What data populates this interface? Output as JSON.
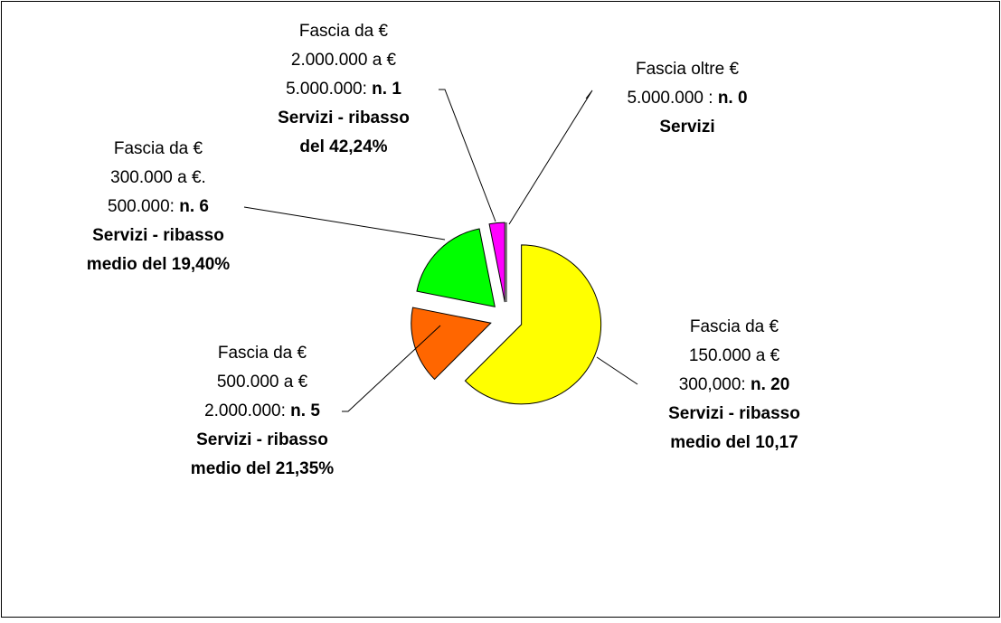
{
  "chart_data": {
    "type": "pie",
    "categories": [
      {
        "plain": [
          "Fascia da €",
          "150.000 a €",
          "300,000:"
        ],
        "bold": [
          "Servizi - ribasso",
          "medio del 10,17"
        ]
      },
      {
        "plain": [
          "Fascia da €",
          "500.000 a €",
          "2.000.000:"
        ],
        "bold": [
          "Servizi - ribasso",
          "medio del 21,35%"
        ]
      },
      {
        "plain": [
          "Fascia da €",
          "300.000 a €.",
          "500.000:"
        ],
        "bold": [
          "Servizi - ribasso",
          "medio del 19,40%"
        ]
      },
      {
        "plain": [
          "Fascia da €",
          "2.000.000 a €",
          "5.000.000:"
        ],
        "bold": [
          "Servizi - ribasso",
          "del 42,24%"
        ]
      },
      {
        "plain": [
          "Fascia oltre €",
          "5.000.000 :"
        ],
        "bold": [
          "Servizi"
        ]
      }
    ],
    "values": [
      20,
      5,
      6,
      1,
      0
    ],
    "value_labels": [
      "n. 20",
      "n. 5",
      "n. 6",
      "n. 1",
      "n. 0"
    ],
    "colors": [
      "#ffff00",
      "#ff6600",
      "#00ff00",
      "#ff00ff",
      "#9999ff"
    ]
  }
}
